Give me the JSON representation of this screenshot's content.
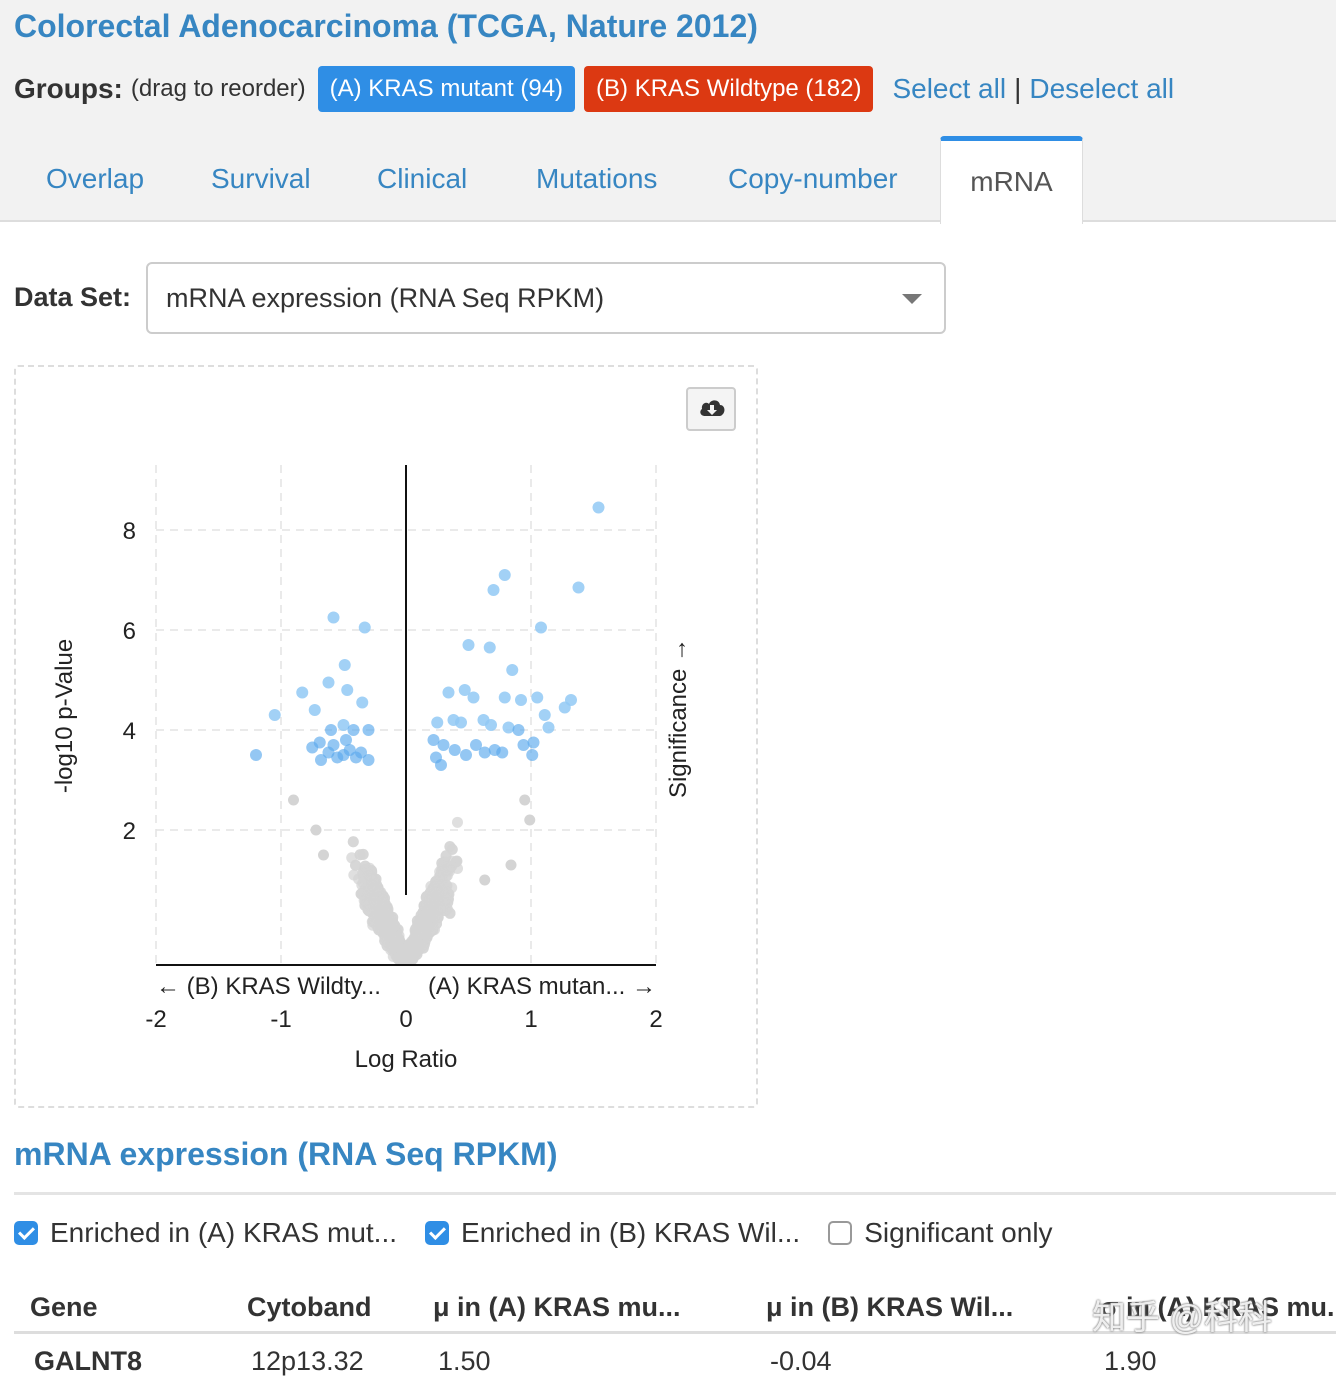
{
  "header": {
    "title": "Colorectal Adenocarcinoma (TCGA, Nature 2012)",
    "groups_label": "Groups:",
    "groups_hint": "(drag to reorder)",
    "groups": [
      {
        "label": "(A) KRAS mutant (94)",
        "color": "#2f8ee5"
      },
      {
        "label": "(B) KRAS Wildtype (182)",
        "color": "#dc3912"
      }
    ],
    "select_all": "Select all",
    "separator": "|",
    "deselect_all": "Deselect all"
  },
  "tabs": [
    {
      "label": "Overlap",
      "active": false
    },
    {
      "label": "Survival",
      "active": false
    },
    {
      "label": "Clinical",
      "active": false
    },
    {
      "label": "Mutations",
      "active": false
    },
    {
      "label": "Copy-number",
      "active": false
    },
    {
      "label": "mRNA",
      "active": true
    }
  ],
  "dataset": {
    "label": "Data Set:",
    "value": "mRNA expression (RNA Seq RPKM)",
    "icon": "chevron-down-icon"
  },
  "download_icon": "cloud-download-icon",
  "chart_data": {
    "type": "scatter",
    "xlabel": "Log Ratio",
    "ylabel": "-log10 p-Value",
    "x_left_hint": "← (B) KRAS Wildty...",
    "x_right_hint": "(A) KRAS mutan... →",
    "right_label": "Significance →",
    "xlim": [
      -2,
      2
    ],
    "ylim": [
      -0.7,
      9.3
    ],
    "x_ticks": [
      "-2",
      "-1",
      "0",
      "1",
      "2"
    ],
    "y_ticks": [
      "2",
      "4",
      "6",
      "8"
    ],
    "grid": true,
    "colors": {
      "significant": "#92c9f5",
      "significant_dense": "#5aa9ec",
      "not_significant": "#d4d4d4"
    },
    "significant_points": [
      [
        1.54,
        8.45
      ],
      [
        0.79,
        7.1
      ],
      [
        0.7,
        6.8
      ],
      [
        1.38,
        6.85
      ],
      [
        1.08,
        6.05
      ],
      [
        -0.58,
        6.25
      ],
      [
        -0.33,
        6.05
      ],
      [
        0.5,
        5.7
      ],
      [
        0.67,
        5.65
      ],
      [
        0.85,
        5.2
      ],
      [
        -0.49,
        5.3
      ],
      [
        -0.62,
        4.95
      ],
      [
        -0.47,
        4.8
      ],
      [
        -0.83,
        4.75
      ],
      [
        0.34,
        4.75
      ],
      [
        0.47,
        4.8
      ],
      [
        0.54,
        4.65
      ],
      [
        0.79,
        4.65
      ],
      [
        0.92,
        4.6
      ],
      [
        1.05,
        4.65
      ],
      [
        1.32,
        4.6
      ],
      [
        1.27,
        4.45
      ],
      [
        -0.35,
        4.55
      ],
      [
        -0.73,
        4.4
      ],
      [
        -1.05,
        4.3
      ],
      [
        -1.2,
        3.5
      ],
      [
        0.25,
        4.15
      ],
      [
        0.38,
        4.2
      ],
      [
        0.44,
        4.15
      ],
      [
        0.62,
        4.2
      ],
      [
        0.68,
        4.1
      ],
      [
        0.82,
        4.05
      ],
      [
        0.9,
        4.0
      ],
      [
        1.11,
        4.3
      ],
      [
        1.02,
        3.75
      ],
      [
        1.14,
        4.05
      ],
      [
        -0.5,
        4.1
      ],
      [
        -0.42,
        4.0
      ],
      [
        -0.3,
        4.0
      ],
      [
        -0.6,
        4.0
      ],
      [
        -0.69,
        3.75
      ],
      [
        -0.58,
        3.7
      ],
      [
        -0.45,
        3.6
      ],
      [
        -0.36,
        3.55
      ],
      [
        -0.48,
        3.8
      ],
      [
        0.22,
        3.8
      ],
      [
        0.3,
        3.7
      ],
      [
        0.39,
        3.6
      ],
      [
        0.48,
        3.5
      ],
      [
        0.56,
        3.7
      ],
      [
        0.63,
        3.55
      ],
      [
        0.71,
        3.6
      ],
      [
        0.77,
        3.55
      ],
      [
        0.94,
        3.7
      ],
      [
        1.01,
        3.5
      ],
      [
        0.24,
        3.45
      ],
      [
        0.28,
        3.3
      ],
      [
        -0.3,
        3.4
      ],
      [
        -0.55,
        3.45
      ],
      [
        -0.68,
        3.4
      ],
      [
        -0.75,
        3.65
      ],
      [
        -0.4,
        3.45
      ],
      [
        -0.62,
        3.55
      ],
      [
        -0.5,
        3.5
      ]
    ],
    "nonsignificant_cloud": {
      "count": 2600,
      "x_spread": 0.55,
      "y_max": 3.3
    }
  },
  "table": {
    "title": "mRNA expression (RNA Seq RPKM)",
    "filters": [
      {
        "label": "Enriched in (A) KRAS mut...",
        "checked": true
      },
      {
        "label": "Enriched in (B) KRAS Wil...",
        "checked": true
      },
      {
        "label": "Significant only",
        "checked": false
      }
    ],
    "columns": [
      "Gene",
      "Cytoband",
      "μ in (A) KRAS mu...",
      "μ in (B) KRAS Wil...",
      "σ in (A) KRAS mu..."
    ],
    "rows": [
      {
        "gene": "GALNT8",
        "cytoband": "12p13.32",
        "mean_a": "1.50",
        "mean_b": "-0.04",
        "sd_a": "1.90"
      }
    ]
  },
  "watermark": "知乎 @科科"
}
